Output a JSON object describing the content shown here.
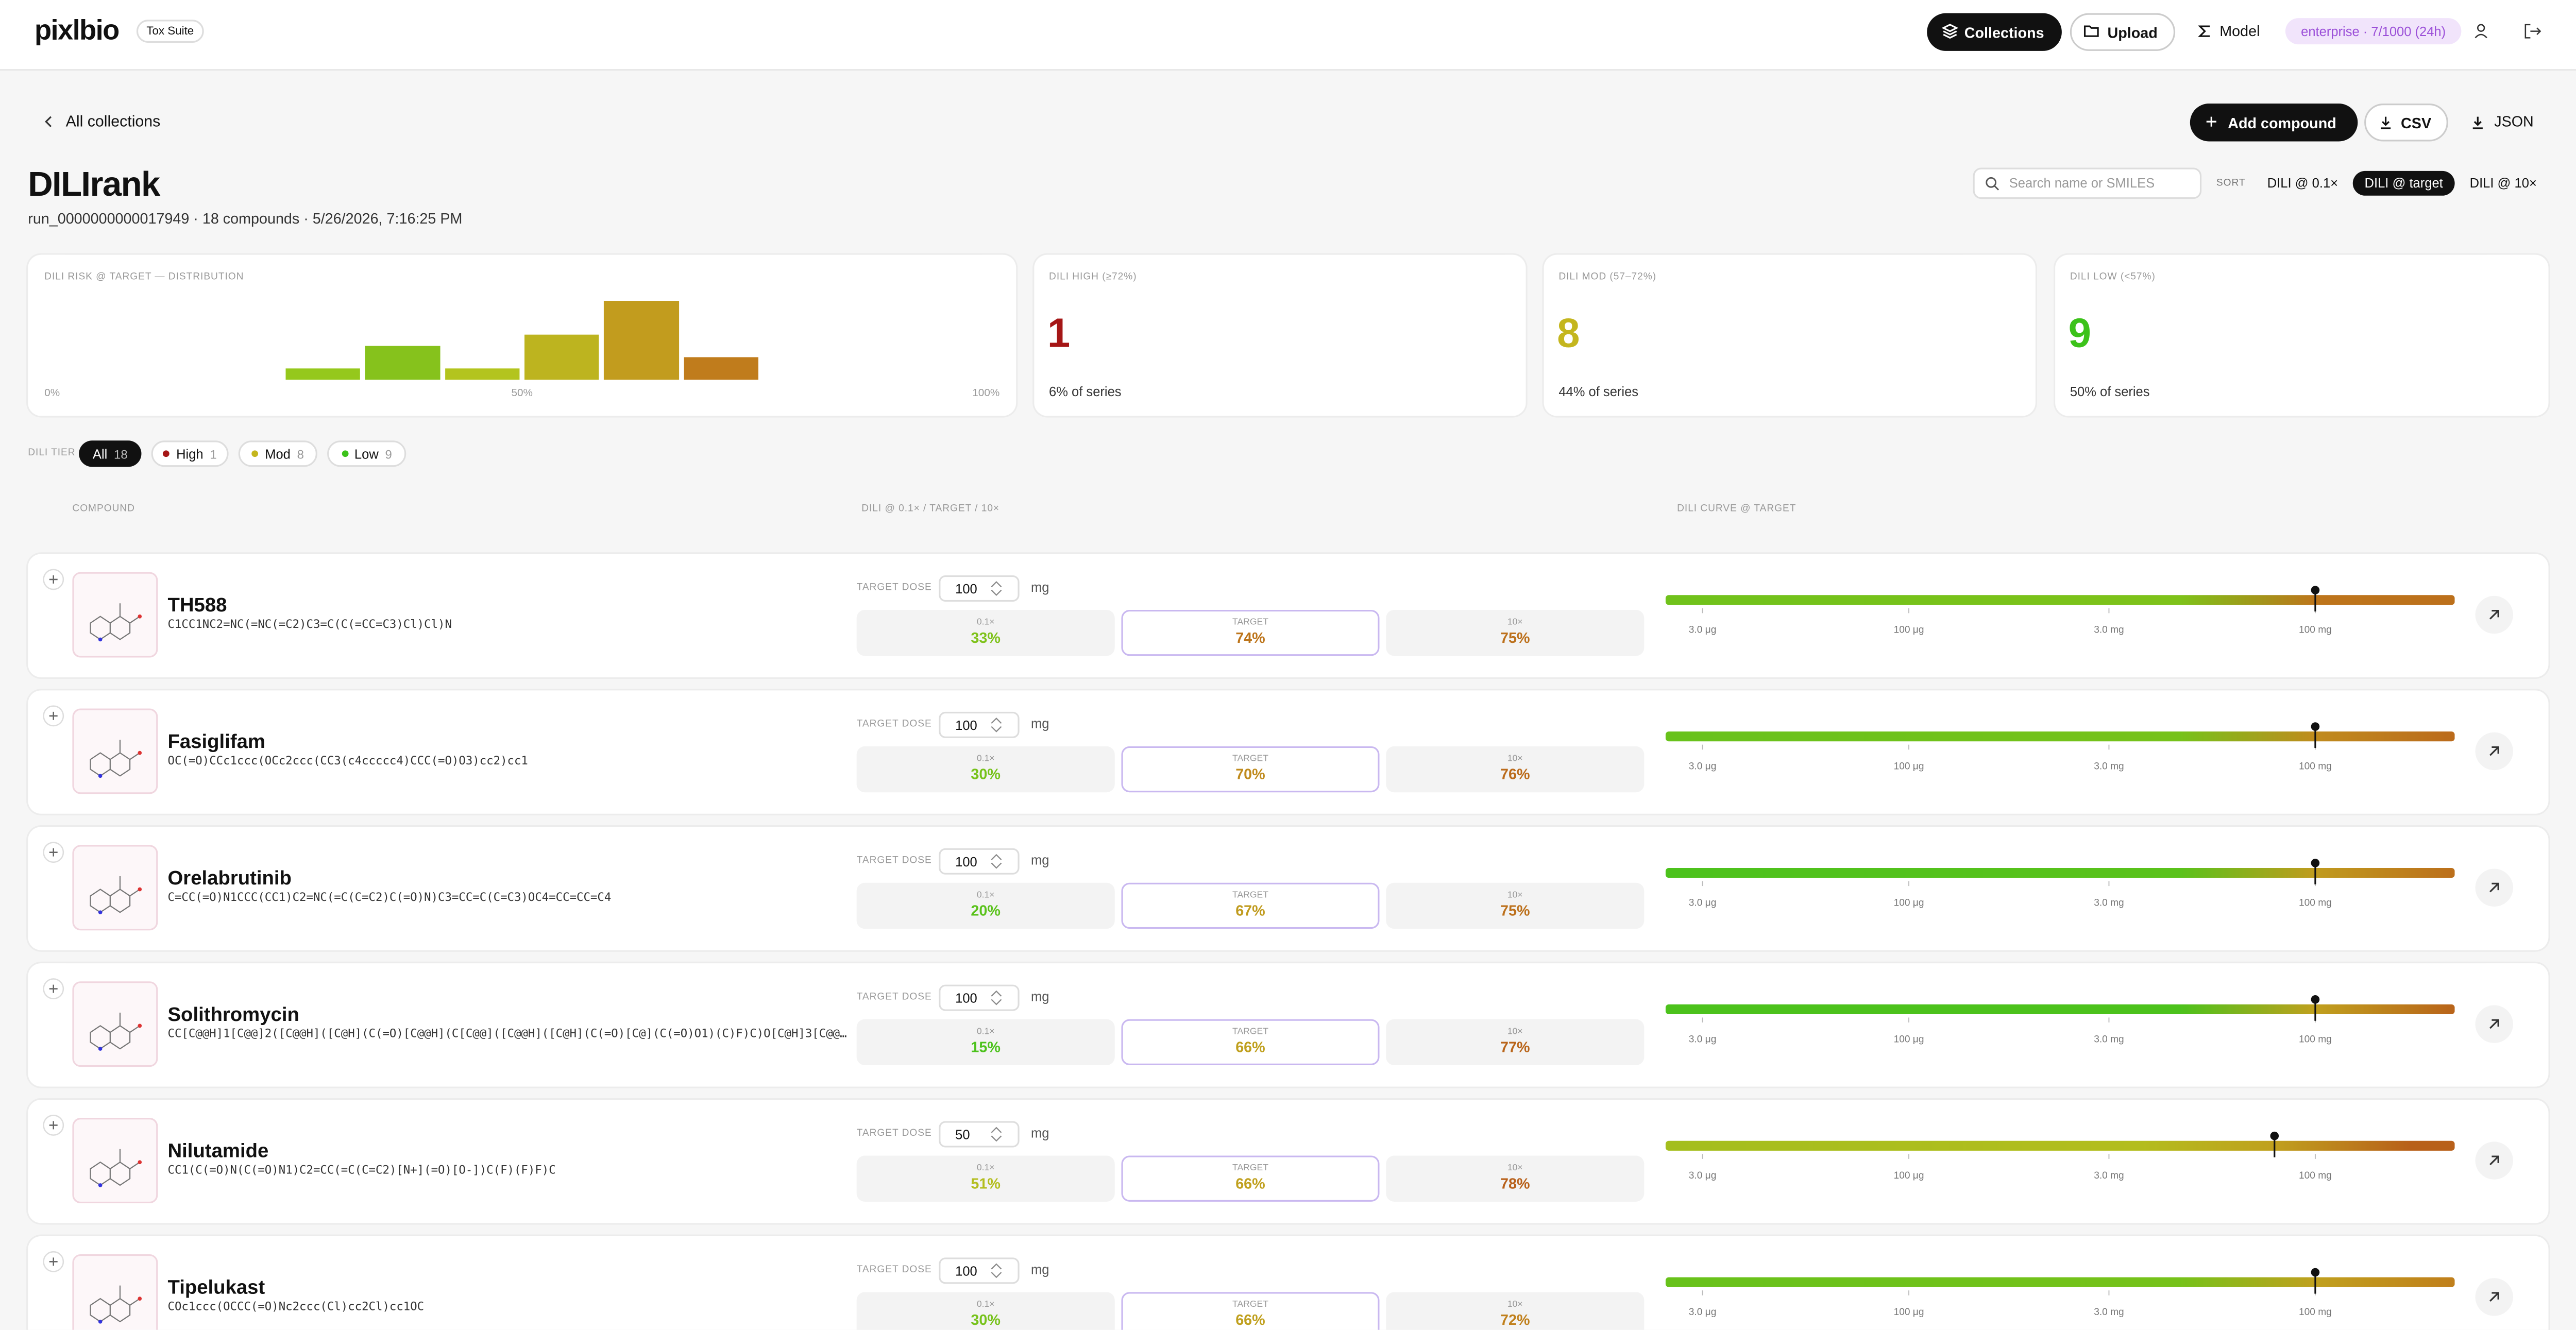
{
  "header": {
    "logo": "pixlbio",
    "badge": "Tox Suite",
    "nav": [
      "Collections",
      "Upload",
      "Model"
    ],
    "usage": "enterprise · 7/1000 (24h)"
  },
  "toolbar": {
    "back": "All collections",
    "actions": [
      "Add compound",
      "CSV",
      "JSON"
    ]
  },
  "collection": {
    "title": "DILIrank",
    "subtitle": "run_0000000000017949 · 18 compounds · 5/26/2026, 7:16:25 PM",
    "search_placeholder": "Search name or SMILES",
    "sort_label": "SORT",
    "sort_options": [
      "DILI @ 0.1×",
      "DILI @ target",
      "DILI @ 10×"
    ],
    "sort_active": 1
  },
  "distribution": {
    "type": "histogram",
    "title": "DILI RISK @ TARGET — DISTRIBUTION",
    "bins": [
      25,
      33.3,
      41.7,
      50,
      58.3,
      66.7,
      75
    ],
    "counts": [
      1,
      3,
      1,
      4,
      7,
      2
    ],
    "colors": [
      "#95c81c",
      "#86c21c",
      "#b3c41e",
      "#bdb41f",
      "#c29c1e",
      "#c07c1c"
    ],
    "xlim": [
      0,
      100
    ],
    "ylim": [
      0,
      7
    ],
    "xticks": [
      {
        "value": 0,
        "label": "0%"
      },
      {
        "value": 50,
        "label": "50%"
      },
      {
        "value": 100,
        "label": "100%"
      }
    ]
  },
  "stats": [
    {
      "label": "DILI HIGH (≥72%)",
      "value": 1,
      "note": "6% of series",
      "color": "#a51616"
    },
    {
      "label": "DILI MOD (57–72%)",
      "value": 8,
      "note": "44% of series",
      "color": "#c4b61e"
    },
    {
      "label": "DILI LOW (<57%)",
      "value": 9,
      "note": "50% of series",
      "color": "#3cc21a"
    }
  ],
  "filter": {
    "label": "DILI TIER",
    "active": 0,
    "chips": [
      {
        "label": "All",
        "count": 18
      },
      {
        "label": "High",
        "count": 1,
        "color": "#a51616"
      },
      {
        "label": "Mod",
        "count": 8,
        "color": "#c4b61e"
      },
      {
        "label": "Low",
        "count": 9,
        "color": "#3cc21a"
      }
    ]
  },
  "table": {
    "columns": [
      "COMPOUND",
      "DILI @ 0.1× / TARGET / 10×",
      "DILI CURVE @ TARGET"
    ],
    "dose_label": "TARGET DOSE",
    "dose_unit": "mg",
    "cell_labels": [
      "0.1×",
      "TARGET",
      "10×"
    ],
    "curve": {
      "log": true,
      "xlim": [
        0.0016,
        1070
      ],
      "xticks": [
        {
          "value": 0.003,
          "label": "3.0 μg"
        },
        {
          "value": 0.1,
          "label": "100 μg"
        },
        {
          "value": 3,
          "label": "3.0 mg"
        },
        {
          "value": 100,
          "label": "100 mg"
        }
      ]
    },
    "rows": [
      {
        "name": "TH588",
        "smiles": "C1CC1NC2=NC(=NC(=C2)C3=C(C(=CC=C3)Cl)Cl)N",
        "target_dose": 100,
        "dili": [
          "33%",
          "74%",
          "75%"
        ]
      },
      {
        "name": "Fasiglifam",
        "smiles": "OC(=O)CCc1ccc(OCc2ccc(CC3(c4ccccc4)CCC(=O)O3)cc2)cc1",
        "target_dose": 100,
        "dili": [
          "30%",
          "70%",
          "76%"
        ]
      },
      {
        "name": "Orelabrutinib",
        "smiles": "C=CC(=O)N1CCC(CC1)C2=NC(=C(C=C2)C(=O)N)C3=CC=C(C=C3)OC4=CC=CC=C4",
        "target_dose": 100,
        "dili": [
          "20%",
          "67%",
          "75%"
        ]
      },
      {
        "name": "Solithromycin",
        "smiles": "CC[C@@H]1[C@@]2([C@@H]([C@H](C(=O)[C@@H](C[C@@]([C@@H]([C@H](C(=O)[C@](C(=O)O1)(C)F)C)O[C@H]3[C@@…",
        "target_dose": 100,
        "dili": [
          "15%",
          "66%",
          "77%"
        ]
      },
      {
        "name": "Nilutamide",
        "smiles": "CC1(C(=O)N(C(=O)N1)C2=CC(=C(C=C2)[N+](=O)[O-])C(F)(F)F)C",
        "target_dose": 50,
        "dili": [
          "51%",
          "66%",
          "78%"
        ]
      },
      {
        "name": "Tipelukast",
        "smiles": "COc1ccc(OCCC(=O)Nc2ccc(Cl)cc2Cl)cc1OC",
        "target_dose": 100,
        "dili": [
          "30%",
          "66%",
          "72%"
        ]
      }
    ]
  }
}
